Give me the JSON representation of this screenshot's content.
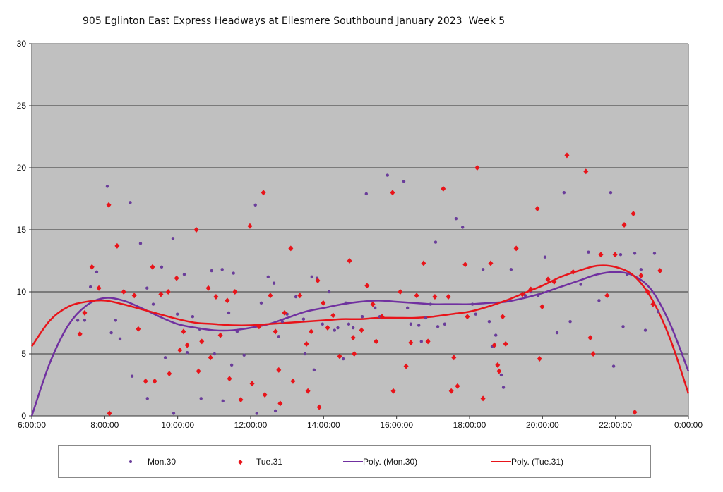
{
  "chart_data": {
    "type": "scatter",
    "title": "905 Eglinton East Express Headways at Ellesmere Southbound January 2023  Week 5",
    "xlabel": "",
    "ylabel": "",
    "xlim_hours": [
      6,
      24
    ],
    "ylim": [
      0,
      30
    ],
    "yticks": [
      "0",
      "5",
      "10",
      "15",
      "20",
      "25",
      "30"
    ],
    "xticks": [
      "6:00:00",
      "8:00:00",
      "10:00:00",
      "12:00:00",
      "14:00:00",
      "16:00:00",
      "18:00:00",
      "20:00:00",
      "22:00:00",
      "0:00:00"
    ],
    "grid": true,
    "legend_position": "bottom",
    "colors": {
      "mon": "#6a3d9a",
      "tue": "#e8141a",
      "plot_bg": "#c0c0c0",
      "mon_line": "#7030a0",
      "tue_line": "#e8141a"
    },
    "series": [
      {
        "name": "Mon.30",
        "marker": "dot",
        "points": [
          [
            7.26,
            7.7
          ],
          [
            7.45,
            7.7
          ],
          [
            7.61,
            10.4
          ],
          [
            7.78,
            11.6
          ],
          [
            8.07,
            18.5
          ],
          [
            8.18,
            6.7
          ],
          [
            8.3,
            7.7
          ],
          [
            8.42,
            6.2
          ],
          [
            8.7,
            17.2
          ],
          [
            8.75,
            3.2
          ],
          [
            8.98,
            13.9
          ],
          [
            9.16,
            10.3
          ],
          [
            9.17,
            1.4
          ],
          [
            9.33,
            9.0
          ],
          [
            9.56,
            12.0
          ],
          [
            9.66,
            4.7
          ],
          [
            9.87,
            14.3
          ],
          [
            9.89,
            0.2
          ],
          [
            9.99,
            8.2
          ],
          [
            10.18,
            11.4
          ],
          [
            10.26,
            5.1
          ],
          [
            10.41,
            8.0
          ],
          [
            10.6,
            7.0
          ],
          [
            10.64,
            1.4
          ],
          [
            10.93,
            11.7
          ],
          [
            11.01,
            5.0
          ],
          [
            11.22,
            11.8
          ],
          [
            11.24,
            1.2
          ],
          [
            11.4,
            8.3
          ],
          [
            11.48,
            4.1
          ],
          [
            11.53,
            11.5
          ],
          [
            11.63,
            6.8
          ],
          [
            11.82,
            4.9
          ],
          [
            12.13,
            17.0
          ],
          [
            12.17,
            0.2
          ],
          [
            12.29,
            9.1
          ],
          [
            12.48,
            11.2
          ],
          [
            12.64,
            10.7
          ],
          [
            12.68,
            0.4
          ],
          [
            12.77,
            6.4
          ],
          [
            12.87,
            7.6
          ],
          [
            13.0,
            8.2
          ],
          [
            13.24,
            9.6
          ],
          [
            13.45,
            7.8
          ],
          [
            13.49,
            5.0
          ],
          [
            13.68,
            11.2
          ],
          [
            13.74,
            3.7
          ],
          [
            13.82,
            11.1
          ],
          [
            13.97,
            7.4
          ],
          [
            14.15,
            10.0
          ],
          [
            14.3,
            6.9
          ],
          [
            14.39,
            7.1
          ],
          [
            14.54,
            4.6
          ],
          [
            14.61,
            9.1
          ],
          [
            14.69,
            7.4
          ],
          [
            14.81,
            7.1
          ],
          [
            15.06,
            8.0
          ],
          [
            15.17,
            17.9
          ],
          [
            15.41,
            8.7
          ],
          [
            15.54,
            8.0
          ],
          [
            15.75,
            19.4
          ],
          [
            16.2,
            18.9
          ],
          [
            16.3,
            8.7
          ],
          [
            16.39,
            7.4
          ],
          [
            16.61,
            7.3
          ],
          [
            16.68,
            6.0
          ],
          [
            16.8,
            7.9
          ],
          [
            16.93,
            9.0
          ],
          [
            17.07,
            14.0
          ],
          [
            17.13,
            7.2
          ],
          [
            17.32,
            7.4
          ],
          [
            17.63,
            15.9
          ],
          [
            17.81,
            15.2
          ],
          [
            18.08,
            9.0
          ],
          [
            18.17,
            8.2
          ],
          [
            18.37,
            11.8
          ],
          [
            18.54,
            7.6
          ],
          [
            18.62,
            5.6
          ],
          [
            18.72,
            6.5
          ],
          [
            18.87,
            3.3
          ],
          [
            18.93,
            2.3
          ],
          [
            19.14,
            11.8
          ],
          [
            19.53,
            9.7
          ],
          [
            19.68,
            10.0
          ],
          [
            19.88,
            9.7
          ],
          [
            20.07,
            12.8
          ],
          [
            20.4,
            6.7
          ],
          [
            20.59,
            18.0
          ],
          [
            20.76,
            7.6
          ],
          [
            21.05,
            10.6
          ],
          [
            21.26,
            13.2
          ],
          [
            21.55,
            9.3
          ],
          [
            21.87,
            18.0
          ],
          [
            21.95,
            4.0
          ],
          [
            22.14,
            13.0
          ],
          [
            22.21,
            7.2
          ],
          [
            22.32,
            11.4
          ],
          [
            22.53,
            13.1
          ],
          [
            22.7,
            11.8
          ],
          [
            22.82,
            6.9
          ],
          [
            23.07,
            13.1
          ],
          [
            23.17,
            8.4
          ]
        ]
      },
      {
        "name": "Tue.31",
        "marker": "diamond",
        "points": [
          [
            7.32,
            6.6
          ],
          [
            7.45,
            8.3
          ],
          [
            7.65,
            12.0
          ],
          [
            7.84,
            10.3
          ],
          [
            8.11,
            17.0
          ],
          [
            8.13,
            0.2
          ],
          [
            8.34,
            13.7
          ],
          [
            8.52,
            10.0
          ],
          [
            8.81,
            9.7
          ],
          [
            8.92,
            7.0
          ],
          [
            9.12,
            2.8
          ],
          [
            9.31,
            12.0
          ],
          [
            9.37,
            2.8
          ],
          [
            9.54,
            9.8
          ],
          [
            9.74,
            10.0
          ],
          [
            9.77,
            3.4
          ],
          [
            9.97,
            11.1
          ],
          [
            10.06,
            5.3
          ],
          [
            10.16,
            6.8
          ],
          [
            10.26,
            5.7
          ],
          [
            10.51,
            15.0
          ],
          [
            10.57,
            3.6
          ],
          [
            10.66,
            6.0
          ],
          [
            10.84,
            10.3
          ],
          [
            10.9,
            4.7
          ],
          [
            11.05,
            9.6
          ],
          [
            11.17,
            6.5
          ],
          [
            11.36,
            9.3
          ],
          [
            11.42,
            3.0
          ],
          [
            11.57,
            10.0
          ],
          [
            11.73,
            1.3
          ],
          [
            11.98,
            15.3
          ],
          [
            12.04,
            2.6
          ],
          [
            12.23,
            7.2
          ],
          [
            12.35,
            18.0
          ],
          [
            12.39,
            1.7
          ],
          [
            12.54,
            9.7
          ],
          [
            12.68,
            6.8
          ],
          [
            12.77,
            3.7
          ],
          [
            12.81,
            1.0
          ],
          [
            12.93,
            8.3
          ],
          [
            13.1,
            13.5
          ],
          [
            13.16,
            2.8
          ],
          [
            13.35,
            9.7
          ],
          [
            13.53,
            5.8
          ],
          [
            13.57,
            2.0
          ],
          [
            13.66,
            6.8
          ],
          [
            13.84,
            10.9
          ],
          [
            13.88,
            0.7
          ],
          [
            13.99,
            9.1
          ],
          [
            14.11,
            7.1
          ],
          [
            14.26,
            8.1
          ],
          [
            14.44,
            4.8
          ],
          [
            14.71,
            12.5
          ],
          [
            14.81,
            6.3
          ],
          [
            14.84,
            5.0
          ],
          [
            15.04,
            6.9
          ],
          [
            15.19,
            10.5
          ],
          [
            15.35,
            9.0
          ],
          [
            15.44,
            6.0
          ],
          [
            15.6,
            8.0
          ],
          [
            15.89,
            18.0
          ],
          [
            15.91,
            2.0
          ],
          [
            16.1,
            10.0
          ],
          [
            16.26,
            4.0
          ],
          [
            16.39,
            5.9
          ],
          [
            16.55,
            9.7
          ],
          [
            16.74,
            12.3
          ],
          [
            16.86,
            6.0
          ],
          [
            17.05,
            9.6
          ],
          [
            17.28,
            18.3
          ],
          [
            17.42,
            9.6
          ],
          [
            17.5,
            2.0
          ],
          [
            17.57,
            4.7
          ],
          [
            17.67,
            2.4
          ],
          [
            17.88,
            12.2
          ],
          [
            17.94,
            8.0
          ],
          [
            18.21,
            20.0
          ],
          [
            18.37,
            1.4
          ],
          [
            18.58,
            12.3
          ],
          [
            18.68,
            5.7
          ],
          [
            18.77,
            4.1
          ],
          [
            18.81,
            3.6
          ],
          [
            18.91,
            8.0
          ],
          [
            18.99,
            5.8
          ],
          [
            19.28,
            13.5
          ],
          [
            19.45,
            9.8
          ],
          [
            19.68,
            10.2
          ],
          [
            19.86,
            16.7
          ],
          [
            19.92,
            4.6
          ],
          [
            19.99,
            8.8
          ],
          [
            20.15,
            11.0
          ],
          [
            20.32,
            10.8
          ],
          [
            20.67,
            21.0
          ],
          [
            20.84,
            11.6
          ],
          [
            21.19,
            19.7
          ],
          [
            21.31,
            6.3
          ],
          [
            21.39,
            5.0
          ],
          [
            21.6,
            13.0
          ],
          [
            21.77,
            9.7
          ],
          [
            21.99,
            13.0
          ],
          [
            22.24,
            15.4
          ],
          [
            22.49,
            16.3
          ],
          [
            22.53,
            0.3
          ],
          [
            22.7,
            11.3
          ],
          [
            22.88,
            10.0
          ],
          [
            23.03,
            9.0
          ],
          [
            23.22,
            11.7
          ]
        ]
      },
      {
        "name": "Poly. (Mon.30)",
        "marker": "line",
        "points": [
          [
            6,
            0
          ],
          [
            6.5,
            4.3
          ],
          [
            7,
            7.3
          ],
          [
            7.5,
            8.9
          ],
          [
            8,
            9.5
          ],
          [
            8.5,
            9.3
          ],
          [
            9,
            8.7
          ],
          [
            9.5,
            8.0
          ],
          [
            10,
            7.4
          ],
          [
            10.5,
            7.1
          ],
          [
            11,
            6.9
          ],
          [
            11.5,
            6.9
          ],
          [
            12,
            7.1
          ],
          [
            12.5,
            7.4
          ],
          [
            13,
            7.9
          ],
          [
            13.5,
            8.4
          ],
          [
            14,
            8.7
          ],
          [
            14.5,
            9.0
          ],
          [
            15,
            9.2
          ],
          [
            15.5,
            9.3
          ],
          [
            16,
            9.2
          ],
          [
            16.5,
            9.1
          ],
          [
            17,
            9.0
          ],
          [
            17.5,
            9.0
          ],
          [
            18,
            9.0
          ],
          [
            18.5,
            9.1
          ],
          [
            19,
            9.2
          ],
          [
            19.5,
            9.5
          ],
          [
            20,
            9.9
          ],
          [
            20.5,
            10.4
          ],
          [
            21,
            10.9
          ],
          [
            21.5,
            11.4
          ],
          [
            22,
            11.6
          ],
          [
            22.5,
            11.3
          ],
          [
            23,
            10.1
          ],
          [
            23.5,
            7.4
          ],
          [
            24,
            3.6
          ]
        ]
      },
      {
        "name": "Poly. (Tue.31)",
        "marker": "line",
        "points": [
          [
            6,
            5.6
          ],
          [
            6.5,
            7.7
          ],
          [
            7,
            8.8
          ],
          [
            7.5,
            9.2
          ],
          [
            8,
            9.3
          ],
          [
            8.5,
            9.0
          ],
          [
            9,
            8.6
          ],
          [
            9.5,
            8.2
          ],
          [
            10,
            7.8
          ],
          [
            10.5,
            7.5
          ],
          [
            11,
            7.4
          ],
          [
            11.5,
            7.3
          ],
          [
            12,
            7.3
          ],
          [
            12.5,
            7.4
          ],
          [
            13,
            7.5
          ],
          [
            13.5,
            7.6
          ],
          [
            14,
            7.7
          ],
          [
            14.5,
            7.8
          ],
          [
            15,
            7.8
          ],
          [
            15.5,
            7.9
          ],
          [
            16,
            7.9
          ],
          [
            16.5,
            7.9
          ],
          [
            17,
            8.0
          ],
          [
            17.5,
            8.2
          ],
          [
            18,
            8.4
          ],
          [
            18.5,
            8.8
          ],
          [
            19,
            9.3
          ],
          [
            19.5,
            9.9
          ],
          [
            20,
            10.5
          ],
          [
            20.5,
            11.2
          ],
          [
            21,
            11.7
          ],
          [
            21.5,
            12.1
          ],
          [
            22,
            12.0
          ],
          [
            22.5,
            11.3
          ],
          [
            23,
            9.4
          ],
          [
            23.5,
            6.2
          ],
          [
            24,
            1.8
          ]
        ]
      }
    ]
  },
  "legend": {
    "mon": "Mon.30",
    "tue": "Tue.31",
    "mon_poly": "Poly. (Mon.30)",
    "tue_poly": "Poly. (Tue.31)"
  }
}
